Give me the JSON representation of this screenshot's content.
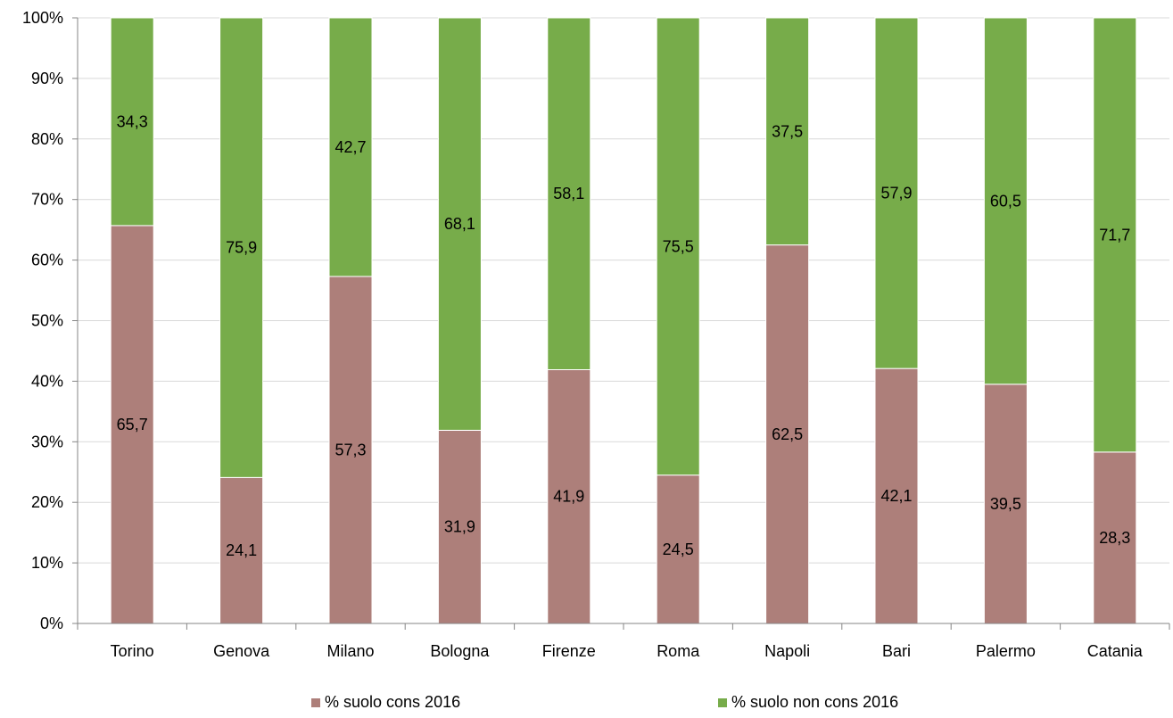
{
  "chart_data": {
    "type": "bar",
    "stacked": true,
    "percent_stacked": true,
    "categories": [
      "Torino",
      "Genova",
      "Milano",
      "Bologna",
      "Firenze",
      "Roma",
      "Napoli",
      "Bari",
      "Palermo",
      "Catania"
    ],
    "series": [
      {
        "name": "% suolo cons 2016",
        "values": [
          65.7,
          24.1,
          57.3,
          31.9,
          41.9,
          24.5,
          62.5,
          42.1,
          39.5,
          28.3
        ],
        "labels": [
          "65,7",
          "24,1",
          "57,3",
          "31,9",
          "41,9",
          "24,5",
          "62,5",
          "42,1",
          "39,5",
          "28,3"
        ],
        "color": "#ad7f7a"
      },
      {
        "name": "% suolo non cons 2016",
        "values": [
          34.3,
          75.9,
          42.7,
          68.1,
          58.1,
          75.5,
          37.5,
          57.9,
          60.5,
          71.7
        ],
        "labels": [
          "34,3",
          "75,9",
          "42,7",
          "68,1",
          "58,1",
          "75,5",
          "37,5",
          "57,9",
          "60,5",
          "71,7"
        ],
        "color": "#77ac4a"
      }
    ],
    "ylim": [
      0,
      100
    ],
    "yticks": [
      "0%",
      "10%",
      "20%",
      "30%",
      "40%",
      "50%",
      "60%",
      "70%",
      "80%",
      "90%",
      "100%"
    ],
    "grid": true,
    "legend_position": "bottom",
    "title": "",
    "xlabel": "",
    "ylabel": ""
  }
}
